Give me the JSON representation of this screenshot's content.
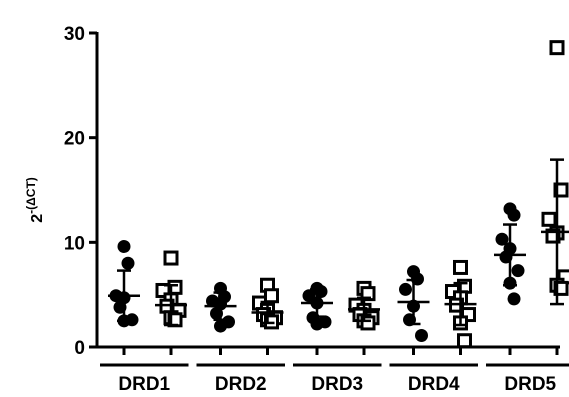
{
  "chart_data": {
    "type": "scatter-dot",
    "y_label": {
      "base": "2",
      "exponent": "-(ΔCT)"
    },
    "categories": [
      "DRD1",
      "DRD2",
      "DRD3",
      "DRD4",
      "DRD5"
    ],
    "ylim": [
      0,
      30
    ],
    "yticks": [
      0,
      10,
      20,
      30
    ],
    "series": [
      {
        "marker": "circle",
        "color": "#000000",
        "points": [
          [
            9.6,
            8.0,
            4.9,
            4.7,
            3.8,
            2.6,
            2.5
          ],
          [
            5.6,
            4.8,
            4.4,
            4.1,
            3.2,
            2.4,
            2.0
          ],
          [
            5.6,
            5.3,
            4.9,
            4.2,
            2.8,
            2.4,
            2.2
          ],
          [
            7.2,
            6.5,
            5.5,
            3.9,
            2.6,
            1.1
          ],
          [
            13.2,
            12.6,
            10.3,
            9.4,
            8.6,
            7.3,
            6.1,
            4.6
          ]
        ],
        "mean": [
          4.9,
          3.9,
          4.2,
          4.3,
          8.8
        ],
        "sd": [
          2.4,
          1.3,
          1.3,
          2.1,
          2.9
        ]
      },
      {
        "marker": "square",
        "color": "#000000",
        "points": [
          [
            8.5,
            5.7,
            5.4,
            4.5,
            3.9,
            3.5,
            2.8,
            2.6
          ],
          [
            5.9,
            4.9,
            4.2,
            3.5,
            3.1,
            2.8,
            2.6,
            2.4
          ],
          [
            5.6,
            5.1,
            4.0,
            3.5,
            3.1,
            2.8,
            2.5,
            2.3
          ],
          [
            7.6,
            5.8,
            5.3,
            4.7,
            4.0,
            3.1,
            2.3,
            0.6
          ],
          [
            28.6,
            15.0,
            12.2,
            10.9,
            10.6,
            6.7,
            5.9,
            5.6
          ]
        ],
        "mean": [
          4.0,
          3.3,
          3.6,
          4.1,
          11.0
        ],
        "sd": [
          1.9,
          1.0,
          1.1,
          2.0,
          6.9
        ]
      }
    ]
  }
}
